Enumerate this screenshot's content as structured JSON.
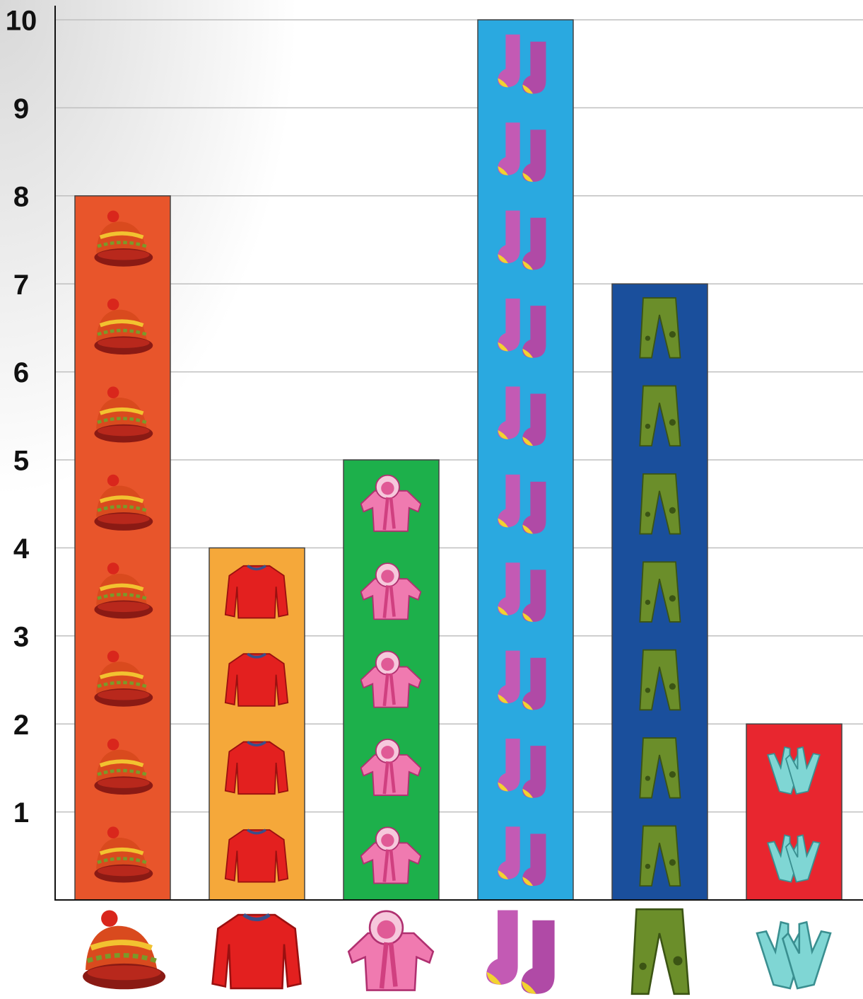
{
  "chart_data": {
    "type": "bar",
    "categories": [
      null,
      null,
      null,
      null,
      null,
      null
    ],
    "values": [
      8,
      4,
      5,
      10,
      7,
      2
    ],
    "colors": [
      "#e8552b",
      "#f5a83a",
      "#1db04b",
      "#2aa9e0",
      "#1a4f9c",
      "#e8262f"
    ],
    "ylim": [
      0,
      10
    ],
    "yticks": [
      1,
      2,
      3,
      4,
      5,
      6,
      7,
      8,
      9,
      10
    ],
    "grid": true
  }
}
